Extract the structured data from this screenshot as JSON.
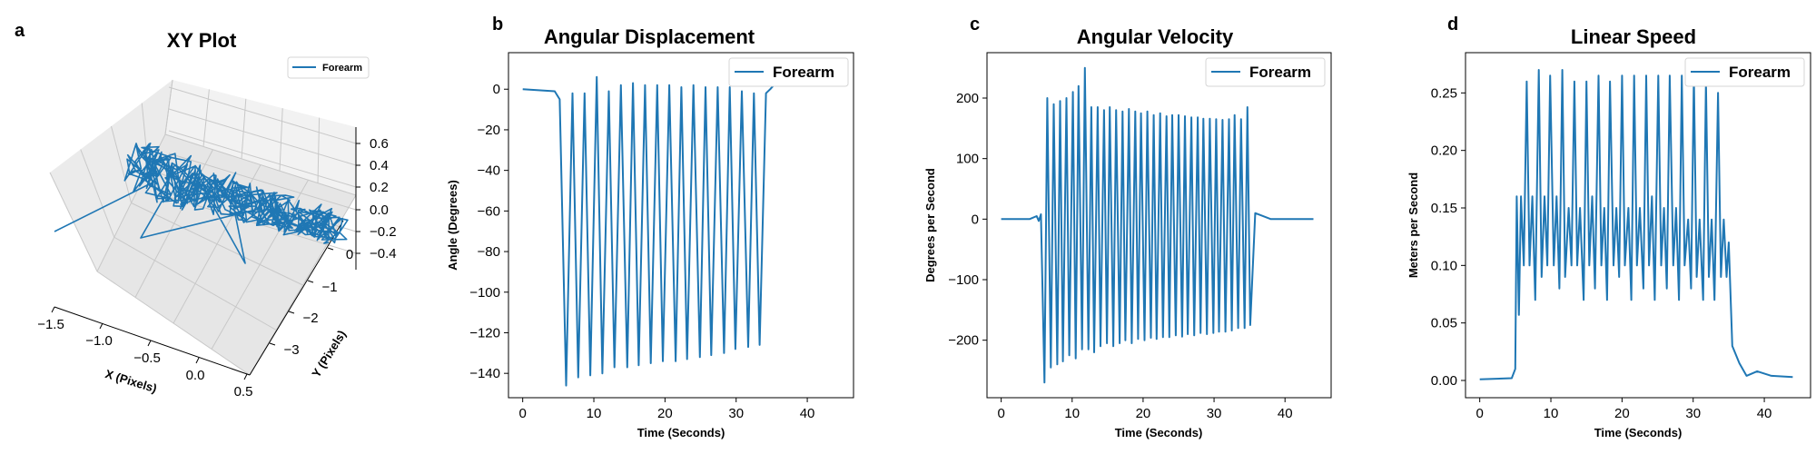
{
  "colors": {
    "series": "#1f77b4",
    "axis": "#000000",
    "pane": "#f2f2f2",
    "grid3d": "#cccccc"
  },
  "chart_data": [
    {
      "panel": "a",
      "type": "line",
      "projection": "3d",
      "title": "XY Plot",
      "xlabel": "X (Pixels)",
      "ylabel": "Y (Pixels)",
      "zlabel": "",
      "xlim": [
        -1.6,
        0.9
      ],
      "ylim": [
        -3.3,
        0.6
      ],
      "zlim": [
        -0.5,
        0.65
      ],
      "xticks": [
        "−1.5",
        "−1.0",
        "−0.5",
        "0.0",
        "0.5"
      ],
      "yticks": [
        "−3",
        "−2",
        "−1",
        "0"
      ],
      "zticks": [
        "0.6",
        "0.4",
        "0.2",
        "0.0",
        "−0.2",
        "−0.4"
      ],
      "legend": {
        "position": "top-right",
        "entries": [
          "Forearm"
        ]
      },
      "series": [
        {
          "name": "Forearm"
        }
      ],
      "grid": true
    },
    {
      "panel": "b",
      "type": "line",
      "title": "Angular Displacement",
      "xlabel": "Time (Seconds)",
      "ylabel": "Angle (Degrees)",
      "xlim": [
        -2,
        46.5
      ],
      "ylim": [
        -152,
        18
      ],
      "xticks": [
        0,
        10,
        20,
        30,
        40
      ],
      "yticks": [
        0,
        -20,
        -40,
        -60,
        -80,
        -100,
        -120,
        -140
      ],
      "legend": {
        "position": "top-right",
        "entries": [
          "Forearm"
        ]
      },
      "series": [
        {
          "name": "Forearm",
          "x": [
            0,
            4.5,
            5.2,
            6.1,
            7.0,
            7.8,
            8.7,
            9.5,
            10.4,
            11.2,
            12.1,
            12.9,
            13.8,
            14.7,
            15.5,
            16.3,
            17.2,
            18.0,
            18.9,
            19.7,
            20.6,
            21.5,
            22.3,
            23.1,
            24.0,
            24.9,
            25.7,
            26.5,
            27.4,
            28.3,
            29.1,
            29.9,
            30.8,
            31.7,
            32.5,
            33.3,
            34.2,
            34.8,
            35.3,
            35.8
          ],
          "values": [
            0,
            -1,
            -5,
            -146,
            -2,
            -142,
            -2,
            -141,
            6,
            -140,
            -1,
            -137,
            2,
            -137,
            3,
            -136,
            2,
            -135,
            2,
            -134,
            2,
            -134,
            1,
            -133,
            2,
            -132,
            1,
            -131,
            1,
            -130,
            1,
            -128,
            -1,
            -127,
            -2,
            -126,
            -2,
            0,
            2,
            2
          ]
        }
      ],
      "grid": false
    },
    {
      "panel": "c",
      "type": "line",
      "title": "Angular Velocity",
      "xlabel": "Time (Seconds)",
      "ylabel": "Degrees per Second",
      "xlim": [
        -2,
        46.5
      ],
      "ylim": [
        -295,
        275
      ],
      "xticks": [
        0,
        10,
        20,
        30,
        40
      ],
      "yticks": [
        200,
        100,
        0,
        -100,
        -200
      ],
      "legend": {
        "position": "top-right",
        "entries": [
          "Forearm"
        ]
      },
      "series": [
        {
          "name": "Forearm",
          "x": [
            0,
            4.0,
            5.0,
            5.3,
            5.6,
            6.1,
            6.5,
            7.0,
            7.4,
            7.9,
            8.3,
            8.7,
            9.2,
            9.6,
            10.1,
            10.5,
            10.9,
            11.4,
            11.8,
            12.3,
            12.7,
            13.1,
            13.6,
            14.0,
            14.5,
            14.9,
            15.3,
            15.8,
            16.2,
            16.7,
            17.1,
            17.5,
            18.0,
            18.4,
            18.9,
            19.3,
            19.7,
            20.2,
            20.6,
            21.1,
            21.5,
            21.9,
            22.4,
            22.8,
            23.3,
            23.7,
            24.1,
            24.6,
            25.0,
            25.5,
            25.9,
            26.3,
            26.8,
            27.2,
            27.7,
            28.1,
            28.5,
            29.0,
            29.4,
            29.9,
            30.3,
            30.7,
            31.2,
            31.6,
            32.1,
            32.5,
            32.9,
            33.4,
            33.8,
            34.3,
            34.7,
            35.1,
            35.8,
            38.0,
            44.0
          ],
          "values": [
            0,
            0,
            5,
            -3,
            8,
            -270,
            200,
            -245,
            190,
            -240,
            195,
            -235,
            200,
            -225,
            210,
            -230,
            220,
            -215,
            250,
            -215,
            185,
            -220,
            185,
            -210,
            180,
            -205,
            185,
            -210,
            180,
            -205,
            178,
            -200,
            182,
            -205,
            178,
            -198,
            175,
            -200,
            178,
            -196,
            172,
            -198,
            175,
            -195,
            170,
            -195,
            172,
            -192,
            172,
            -194,
            170,
            -190,
            168,
            -192,
            168,
            -188,
            166,
            -190,
            166,
            -188,
            165,
            -186,
            164,
            -186,
            165,
            -184,
            172,
            -180,
            165,
            -180,
            185,
            -175,
            10,
            0,
            0
          ]
        }
      ],
      "grid": false
    },
    {
      "panel": "d",
      "type": "line",
      "title": "Linear Speed",
      "xlabel": "Time (Seconds)",
      "ylabel": "Meters per Second",
      "xlim": [
        -2,
        46.5
      ],
      "ylim": [
        -0.015,
        0.285
      ],
      "xticks": [
        0,
        10,
        20,
        30,
        40
      ],
      "yticks": [
        0.25,
        0.2,
        0.15,
        0.1,
        0.05,
        0.0
      ],
      "ytick_labels": [
        "0.25",
        "0.20",
        "0.15",
        "0.10",
        "0.05",
        "0.00"
      ],
      "legend": {
        "position": "top-right",
        "entries": [
          "Forearm"
        ]
      },
      "series": [
        {
          "name": "Forearm",
          "x": [
            0,
            4.5,
            5.0,
            5.2,
            5.5,
            5.8,
            6.2,
            6.6,
            7.0,
            7.4,
            7.8,
            8.3,
            8.7,
            9.1,
            9.5,
            9.9,
            10.4,
            10.8,
            11.2,
            11.6,
            12.0,
            12.5,
            12.9,
            13.3,
            13.7,
            14.1,
            14.6,
            15.0,
            15.4,
            15.8,
            16.2,
            16.7,
            17.1,
            17.5,
            17.9,
            18.3,
            18.8,
            19.2,
            19.6,
            20.0,
            20.4,
            20.9,
            21.3,
            21.7,
            22.1,
            22.5,
            23.0,
            23.4,
            23.8,
            24.2,
            24.6,
            25.1,
            25.5,
            25.9,
            26.3,
            26.7,
            27.2,
            27.6,
            28.0,
            28.4,
            28.8,
            29.3,
            29.7,
            30.1,
            30.5,
            30.9,
            31.4,
            31.8,
            32.2,
            32.6,
            33.0,
            33.5,
            33.9,
            34.3,
            34.7,
            35.0,
            35.5,
            36.5,
            37.5,
            39.0,
            41.0,
            44.0
          ],
          "values": [
            0.001,
            0.002,
            0.01,
            0.16,
            0.057,
            0.16,
            0.1,
            0.26,
            0.1,
            0.16,
            0.07,
            0.27,
            0.09,
            0.16,
            0.1,
            0.265,
            0.1,
            0.16,
            0.08,
            0.27,
            0.09,
            0.15,
            0.1,
            0.26,
            0.1,
            0.15,
            0.07,
            0.26,
            0.1,
            0.16,
            0.08,
            0.265,
            0.1,
            0.15,
            0.07,
            0.26,
            0.1,
            0.15,
            0.09,
            0.265,
            0.1,
            0.15,
            0.07,
            0.265,
            0.1,
            0.15,
            0.08,
            0.265,
            0.1,
            0.16,
            0.07,
            0.265,
            0.1,
            0.15,
            0.08,
            0.265,
            0.1,
            0.15,
            0.07,
            0.265,
            0.1,
            0.14,
            0.08,
            0.265,
            0.09,
            0.14,
            0.07,
            0.26,
            0.09,
            0.14,
            0.07,
            0.25,
            0.09,
            0.14,
            0.09,
            0.12,
            0.03,
            0.015,
            0.004,
            0.008,
            0.004,
            0.003
          ]
        }
      ],
      "grid": false
    }
  ]
}
